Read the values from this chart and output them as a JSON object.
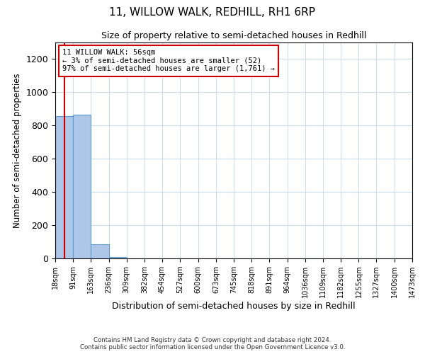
{
  "title": "11, WILLOW WALK, REDHILL, RH1 6RP",
  "subtitle": "Size of property relative to semi-detached houses in Redhill",
  "xlabel": "Distribution of semi-detached houses by size in Redhill",
  "ylabel": "Number of semi-detached properties",
  "bin_edges": [
    18,
    91,
    163,
    236,
    309,
    382,
    454,
    527,
    600,
    673,
    745,
    818,
    891,
    964,
    1036,
    1109,
    1182,
    1255,
    1327,
    1400,
    1473
  ],
  "bin_counts": [
    855,
    865,
    85,
    8,
    0,
    0,
    0,
    0,
    0,
    0,
    0,
    0,
    0,
    0,
    0,
    0,
    0,
    0,
    0,
    0
  ],
  "bar_color": "#aec6e8",
  "bar_edge_color": "#5a9fd4",
  "property_size": 56,
  "property_label": "11 WILLOW WALK: 56sqm",
  "pct_smaller": 3,
  "count_smaller": 52,
  "pct_larger": 97,
  "count_larger": 1761,
  "vline_color": "#cc0000",
  "annotation_box_color": "#cc0000",
  "ylim": [
    0,
    1300
  ],
  "yticks": [
    0,
    200,
    400,
    600,
    800,
    1000,
    1200
  ],
  "footnote1": "Contains HM Land Registry data © Crown copyright and database right 2024.",
  "footnote2": "Contains public sector information licensed under the Open Government Licence v3.0.",
  "background_color": "#ffffff",
  "grid_color": "#ccddee"
}
